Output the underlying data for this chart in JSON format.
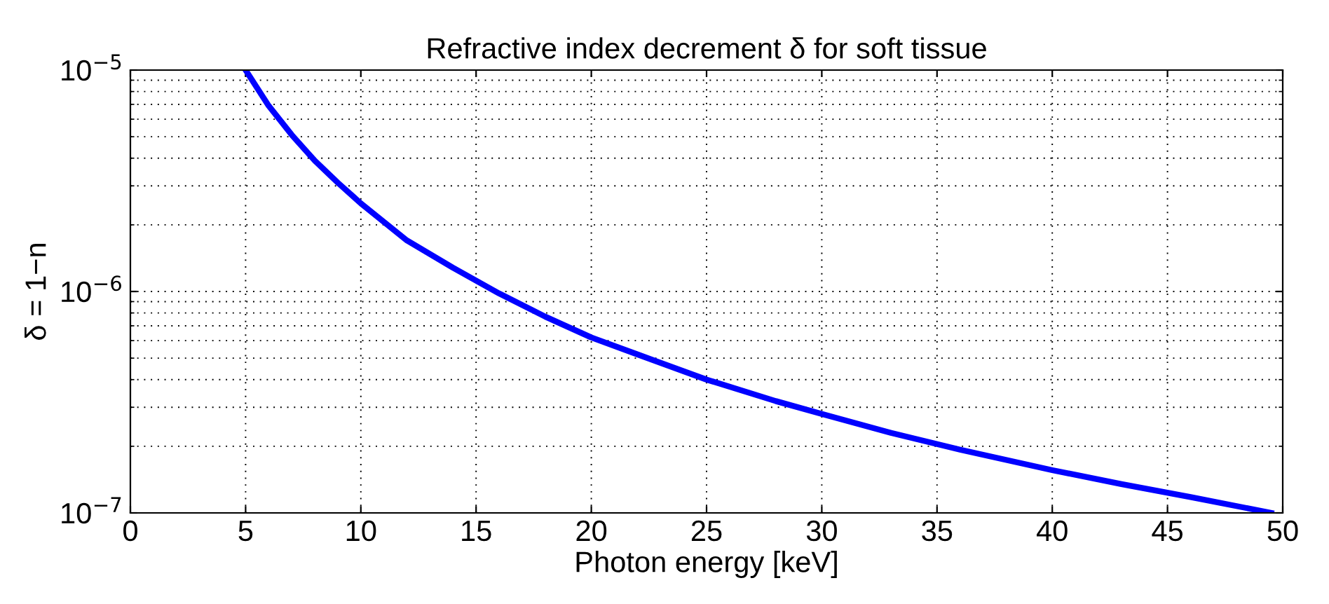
{
  "chart_data": {
    "type": "line",
    "title": "Refractive index decrement δ for soft tissue",
    "xlabel": "Photon energy [keV]",
    "ylabel": "δ = 1−n",
    "x": [
      5,
      6,
      7,
      8,
      9,
      10,
      12,
      14,
      16,
      18,
      20,
      22,
      25,
      28,
      30,
      33,
      36,
      40,
      43,
      46,
      49.5
    ],
    "series": [
      {
        "color": "#0000ff",
        "values": [
          1e-05,
          6.9e-06,
          5.1e-06,
          3.9e-06,
          3.1e-06,
          2.5e-06,
          1.7e-06,
          1.28e-06,
          9.8e-07,
          7.7e-07,
          6.2e-07,
          5.2e-07,
          4e-07,
          3.2e-07,
          2.8e-07,
          2.3e-07,
          1.93e-07,
          1.56e-07,
          1.35e-07,
          1.18e-07,
          1e-07
        ]
      }
    ],
    "log": "y",
    "xlim": [
      0,
      50
    ],
    "xticks": [
      0,
      5,
      10,
      15,
      20,
      25,
      30,
      35,
      40,
      45,
      50
    ],
    "ylim": [
      1e-07,
      1e-05
    ],
    "yticks": [
      {
        "value": 1e-07,
        "label": "10$^{−7}$"
      },
      {
        "value": 1e-06,
        "label": "10$^{−6}$"
      },
      {
        "value": 1e-05,
        "label": "10$^{−5}$"
      }
    ],
    "grid": true,
    "line_style": "solid",
    "marker": "none"
  }
}
